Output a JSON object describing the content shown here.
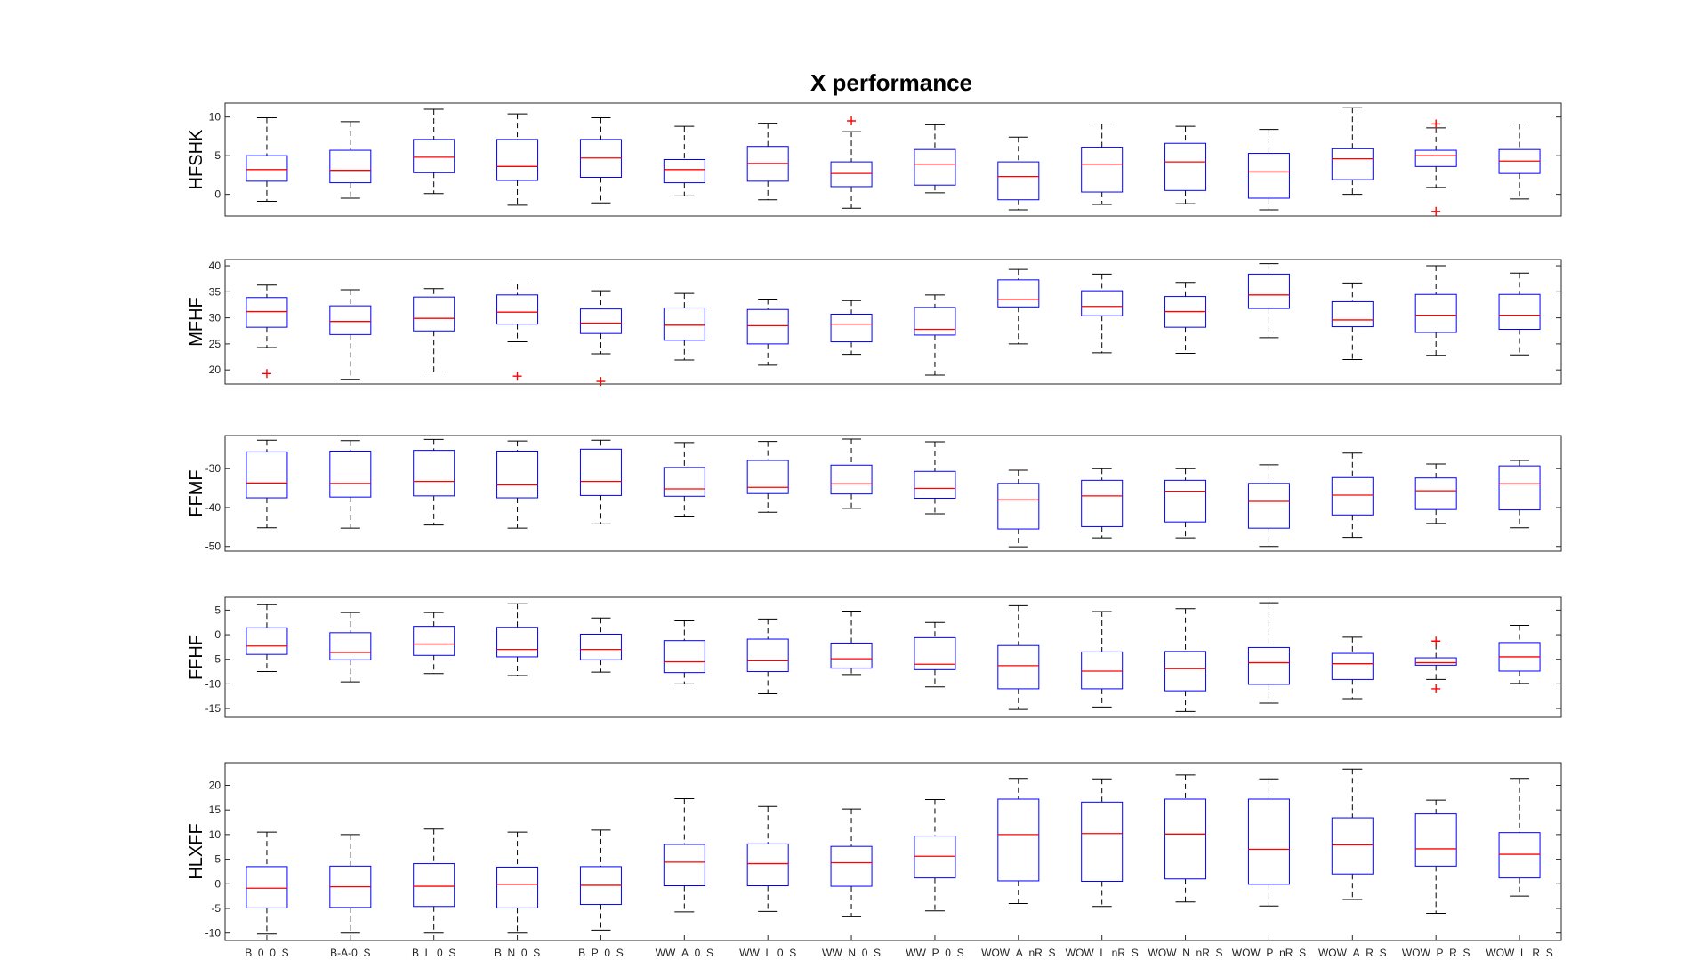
{
  "chart_data": {
    "type": "box",
    "title": "X performance",
    "categories": [
      "B_0_0_S",
      "B-A-0_S",
      "B_L_0_S",
      "B_N_0_S",
      "B_P_0_S",
      "WW_A_0_S",
      "WW_L_0_S",
      "WW_N_0_S",
      "WW_P_0_S",
      "WOW_A_nR_S",
      "WOW_L_nR_S",
      "WOW_N_nR_S",
      "WOW_P_nR_S",
      "WOW_A_R_S",
      "WOW_P_R_S",
      "WOW_L_R_S"
    ],
    "colors": {
      "box": "#0000ff",
      "median": "#ff0000",
      "whisker": "#000000",
      "outlier": "#ff0000"
    },
    "grid": false,
    "panels": [
      {
        "ylabel": "HFSHK",
        "ylim": [
          -2.8,
          11.8
        ],
        "yticks": [
          0,
          5,
          10
        ],
        "boxes": [
          {
            "wlo": -0.9,
            "q1": 1.7,
            "med": 3.2,
            "q3": 5.0,
            "whi": 9.9,
            "outliers": []
          },
          {
            "wlo": -0.5,
            "q1": 1.5,
            "med": 3.1,
            "q3": 5.7,
            "whi": 9.4,
            "outliers": []
          },
          {
            "wlo": 0.1,
            "q1": 2.8,
            "med": 4.8,
            "q3": 7.1,
            "whi": 11.0,
            "outliers": []
          },
          {
            "wlo": -1.4,
            "q1": 1.8,
            "med": 3.6,
            "q3": 7.1,
            "whi": 10.4,
            "outliers": []
          },
          {
            "wlo": -1.1,
            "q1": 2.2,
            "med": 4.7,
            "q3": 7.1,
            "whi": 9.9,
            "outliers": []
          },
          {
            "wlo": -0.2,
            "q1": 1.5,
            "med": 3.2,
            "q3": 4.5,
            "whi": 8.8,
            "outliers": []
          },
          {
            "wlo": -0.7,
            "q1": 1.7,
            "med": 4.0,
            "q3": 6.2,
            "whi": 9.2,
            "outliers": []
          },
          {
            "wlo": -1.8,
            "q1": 1.0,
            "med": 2.7,
            "q3": 4.2,
            "whi": 8.1,
            "outliers": [
              9.5
            ]
          },
          {
            "wlo": 0.2,
            "q1": 1.2,
            "med": 3.9,
            "q3": 5.8,
            "whi": 9.0,
            "outliers": []
          },
          {
            "wlo": -2.0,
            "q1": -0.7,
            "med": 2.3,
            "q3": 4.2,
            "whi": 7.4,
            "outliers": []
          },
          {
            "wlo": -1.3,
            "q1": 0.3,
            "med": 3.9,
            "q3": 6.1,
            "whi": 9.1,
            "outliers": []
          },
          {
            "wlo": -1.2,
            "q1": 0.5,
            "med": 4.2,
            "q3": 6.6,
            "whi": 8.8,
            "outliers": []
          },
          {
            "wlo": -2.0,
            "q1": -0.5,
            "med": 2.9,
            "q3": 5.3,
            "whi": 8.4,
            "outliers": []
          },
          {
            "wlo": 0.0,
            "q1": 1.9,
            "med": 4.6,
            "q3": 5.9,
            "whi": 11.2,
            "outliers": []
          },
          {
            "wlo": 0.9,
            "q1": 3.6,
            "med": 5.0,
            "q3": 5.7,
            "whi": 8.6,
            "outliers": [
              9.1,
              -2.2
            ]
          },
          {
            "wlo": -0.6,
            "q1": 2.7,
            "med": 4.3,
            "q3": 5.8,
            "whi": 9.1,
            "outliers": []
          }
        ]
      },
      {
        "ylabel": "MFHF",
        "ylim": [
          17.3,
          41.2
        ],
        "yticks": [
          20,
          25,
          30,
          35,
          40
        ],
        "boxes": [
          {
            "wlo": 24.3,
            "q1": 28.2,
            "med": 31.2,
            "q3": 33.9,
            "whi": 36.3,
            "outliers": [
              19.3
            ]
          },
          {
            "wlo": 18.2,
            "q1": 26.8,
            "med": 29.3,
            "q3": 32.3,
            "whi": 35.4,
            "outliers": []
          },
          {
            "wlo": 19.6,
            "q1": 27.5,
            "med": 29.9,
            "q3": 34.0,
            "whi": 35.6,
            "outliers": []
          },
          {
            "wlo": 25.4,
            "q1": 28.8,
            "med": 31.1,
            "q3": 34.4,
            "whi": 36.5,
            "outliers": [
              18.8
            ]
          },
          {
            "wlo": 23.1,
            "q1": 27.0,
            "med": 29.0,
            "q3": 31.7,
            "whi": 35.2,
            "outliers": [
              17.8
            ]
          },
          {
            "wlo": 21.9,
            "q1": 25.7,
            "med": 28.6,
            "q3": 31.9,
            "whi": 34.7,
            "outliers": []
          },
          {
            "wlo": 20.9,
            "q1": 25.0,
            "med": 28.5,
            "q3": 31.6,
            "whi": 33.6,
            "outliers": []
          },
          {
            "wlo": 23.0,
            "q1": 25.4,
            "med": 28.8,
            "q3": 30.7,
            "whi": 33.3,
            "outliers": []
          },
          {
            "wlo": 19.0,
            "q1": 26.7,
            "med": 27.8,
            "q3": 32.0,
            "whi": 34.4,
            "outliers": []
          },
          {
            "wlo": 25.0,
            "q1": 32.1,
            "med": 33.5,
            "q3": 37.3,
            "whi": 39.3,
            "outliers": []
          },
          {
            "wlo": 23.3,
            "q1": 30.4,
            "med": 32.2,
            "q3": 35.2,
            "whi": 38.4,
            "outliers": []
          },
          {
            "wlo": 23.2,
            "q1": 28.2,
            "med": 31.2,
            "q3": 34.1,
            "whi": 36.8,
            "outliers": []
          },
          {
            "wlo": 26.2,
            "q1": 31.8,
            "med": 34.4,
            "q3": 38.4,
            "whi": 40.4,
            "outliers": []
          },
          {
            "wlo": 22.0,
            "q1": 28.3,
            "med": 29.6,
            "q3": 33.1,
            "whi": 36.7,
            "outliers": []
          },
          {
            "wlo": 22.8,
            "q1": 27.2,
            "med": 30.5,
            "q3": 34.5,
            "whi": 40.0,
            "outliers": []
          },
          {
            "wlo": 22.9,
            "q1": 27.8,
            "med": 30.5,
            "q3": 34.5,
            "whi": 38.6,
            "outliers": []
          }
        ]
      },
      {
        "ylabel": "FFMF",
        "ylim": [
          -51.2,
          -21.5
        ],
        "yticks": [
          -50,
          -40,
          -30
        ],
        "boxes": [
          {
            "wlo": -45.2,
            "q1": -37.5,
            "med": -33.7,
            "q3": -25.7,
            "whi": -22.7,
            "outliers": []
          },
          {
            "wlo": -45.3,
            "q1": -37.3,
            "med": -33.8,
            "q3": -25.5,
            "whi": -22.8,
            "outliers": []
          },
          {
            "wlo": -44.5,
            "q1": -37.0,
            "med": -33.3,
            "q3": -25.3,
            "whi": -22.5,
            "outliers": []
          },
          {
            "wlo": -45.3,
            "q1": -37.5,
            "med": -34.2,
            "q3": -25.5,
            "whi": -22.9,
            "outliers": []
          },
          {
            "wlo": -44.2,
            "q1": -36.9,
            "med": -33.3,
            "q3": -25.0,
            "whi": -22.7,
            "outliers": []
          },
          {
            "wlo": -42.4,
            "q1": -37.1,
            "med": -35.2,
            "q3": -29.7,
            "whi": -23.3,
            "outliers": []
          },
          {
            "wlo": -41.2,
            "q1": -36.4,
            "med": -34.8,
            "q3": -27.9,
            "whi": -23.0,
            "outliers": []
          },
          {
            "wlo": -40.2,
            "q1": -36.5,
            "med": -33.9,
            "q3": -29.1,
            "whi": -22.4,
            "outliers": []
          },
          {
            "wlo": -41.6,
            "q1": -37.6,
            "med": -35.1,
            "q3": -30.7,
            "whi": -23.1,
            "outliers": []
          },
          {
            "wlo": -50.1,
            "q1": -45.5,
            "med": -38.0,
            "q3": -33.8,
            "whi": -30.4,
            "outliers": []
          },
          {
            "wlo": -47.8,
            "q1": -44.9,
            "med": -37.0,
            "q3": -33.0,
            "whi": -30.0,
            "outliers": []
          },
          {
            "wlo": -47.8,
            "q1": -43.7,
            "med": -35.8,
            "q3": -33.0,
            "whi": -30.0,
            "outliers": []
          },
          {
            "wlo": -50.0,
            "q1": -45.3,
            "med": -38.4,
            "q3": -33.8,
            "whi": -29.0,
            "outliers": []
          },
          {
            "wlo": -47.7,
            "q1": -41.9,
            "med": -36.8,
            "q3": -32.3,
            "whi": -26.0,
            "outliers": []
          },
          {
            "wlo": -44.1,
            "q1": -40.5,
            "med": -35.7,
            "q3": -32.4,
            "whi": -28.8,
            "outliers": []
          },
          {
            "wlo": -45.2,
            "q1": -40.6,
            "med": -33.9,
            "q3": -29.3,
            "whi": -27.9,
            "outliers": []
          }
        ]
      },
      {
        "ylabel": "FFHF",
        "ylim": [
          -16.8,
          7.6
        ],
        "yticks": [
          -15,
          -10,
          -5,
          0,
          5
        ],
        "boxes": [
          {
            "wlo": -7.5,
            "q1": -4.0,
            "med": -2.3,
            "q3": 1.4,
            "whi": 6.1,
            "outliers": []
          },
          {
            "wlo": -9.6,
            "q1": -5.1,
            "med": -3.6,
            "q3": 0.4,
            "whi": 4.5,
            "outliers": []
          },
          {
            "wlo": -7.9,
            "q1": -4.2,
            "med": -1.9,
            "q3": 1.7,
            "whi": 4.5,
            "outliers": []
          },
          {
            "wlo": -8.3,
            "q1": -4.5,
            "med": -3.0,
            "q3": 1.5,
            "whi": 6.3,
            "outliers": []
          },
          {
            "wlo": -7.6,
            "q1": -5.1,
            "med": -3.0,
            "q3": 0.1,
            "whi": 3.4,
            "outliers": []
          },
          {
            "wlo": -10.0,
            "q1": -7.7,
            "med": -5.5,
            "q3": -1.2,
            "whi": 2.8,
            "outliers": []
          },
          {
            "wlo": -12.0,
            "q1": -7.5,
            "med": -5.3,
            "q3": -0.9,
            "whi": 3.2,
            "outliers": []
          },
          {
            "wlo": -8.1,
            "q1": -6.8,
            "med": -4.9,
            "q3": -1.7,
            "whi": 4.8,
            "outliers": []
          },
          {
            "wlo": -10.6,
            "q1": -7.1,
            "med": -6.0,
            "q3": -0.6,
            "whi": 2.5,
            "outliers": []
          },
          {
            "wlo": -15.2,
            "q1": -11.0,
            "med": -6.3,
            "q3": -2.2,
            "whi": 5.9,
            "outliers": []
          },
          {
            "wlo": -14.7,
            "q1": -11.0,
            "med": -7.4,
            "q3": -3.5,
            "whi": 4.7,
            "outliers": []
          },
          {
            "wlo": -15.6,
            "q1": -11.4,
            "med": -6.9,
            "q3": -3.4,
            "whi": 5.3,
            "outliers": []
          },
          {
            "wlo": -13.9,
            "q1": -10.1,
            "med": -5.7,
            "q3": -2.6,
            "whi": 6.5,
            "outliers": []
          },
          {
            "wlo": -13.0,
            "q1": -9.1,
            "med": -5.9,
            "q3": -3.8,
            "whi": -0.5,
            "outliers": []
          },
          {
            "wlo": -9.1,
            "q1": -6.2,
            "med": -5.7,
            "q3": -4.7,
            "whi": -1.9,
            "outliers": [
              -1.3,
              -11.0
            ]
          },
          {
            "wlo": -9.9,
            "q1": -7.4,
            "med": -4.5,
            "q3": -1.6,
            "whi": 1.9,
            "outliers": []
          }
        ]
      },
      {
        "ylabel": "HLXFF",
        "ylim": [
          -11.5,
          24.6
        ],
        "yticks": [
          -10,
          -5,
          0,
          5,
          10,
          15,
          20
        ],
        "boxes": [
          {
            "wlo": -10.2,
            "q1": -4.9,
            "med": -0.9,
            "q3": 3.5,
            "whi": 10.5,
            "outliers": []
          },
          {
            "wlo": -10.0,
            "q1": -4.8,
            "med": -0.6,
            "q3": 3.6,
            "whi": 10.0,
            "outliers": []
          },
          {
            "wlo": -10.0,
            "q1": -4.6,
            "med": -0.5,
            "q3": 4.1,
            "whi": 11.1,
            "outliers": []
          },
          {
            "wlo": -10.0,
            "q1": -4.9,
            "med": -0.1,
            "q3": 3.4,
            "whi": 10.5,
            "outliers": []
          },
          {
            "wlo": -9.4,
            "q1": -4.2,
            "med": -0.3,
            "q3": 3.5,
            "whi": 10.9,
            "outliers": []
          },
          {
            "wlo": -5.7,
            "q1": -0.4,
            "med": 4.4,
            "q3": 8.0,
            "whi": 17.3,
            "outliers": []
          },
          {
            "wlo": -5.6,
            "q1": -0.4,
            "med": 4.1,
            "q3": 8.1,
            "whi": 15.7,
            "outliers": []
          },
          {
            "wlo": -6.7,
            "q1": -0.5,
            "med": 4.3,
            "q3": 7.6,
            "whi": 15.2,
            "outliers": []
          },
          {
            "wlo": -5.5,
            "q1": 1.2,
            "med": 5.6,
            "q3": 9.7,
            "whi": 17.1,
            "outliers": []
          },
          {
            "wlo": -4.0,
            "q1": 0.6,
            "med": 10.0,
            "q3": 17.2,
            "whi": 21.4,
            "outliers": []
          },
          {
            "wlo": -4.6,
            "q1": 0.5,
            "med": 10.2,
            "q3": 16.6,
            "whi": 21.3,
            "outliers": []
          },
          {
            "wlo": -3.7,
            "q1": 1.0,
            "med": 10.1,
            "q3": 17.2,
            "whi": 22.1,
            "outliers": []
          },
          {
            "wlo": -4.5,
            "q1": -0.1,
            "med": 7.0,
            "q3": 17.2,
            "whi": 21.3,
            "outliers": []
          },
          {
            "wlo": -3.2,
            "q1": 2.0,
            "med": 7.9,
            "q3": 13.4,
            "whi": 23.3,
            "outliers": []
          },
          {
            "wlo": -6.0,
            "q1": 3.6,
            "med": 7.1,
            "q3": 14.2,
            "whi": 17.0,
            "outliers": []
          },
          {
            "wlo": -2.5,
            "q1": 1.2,
            "med": 6.0,
            "q3": 10.4,
            "whi": 21.4,
            "outliers": []
          }
        ]
      }
    ]
  }
}
